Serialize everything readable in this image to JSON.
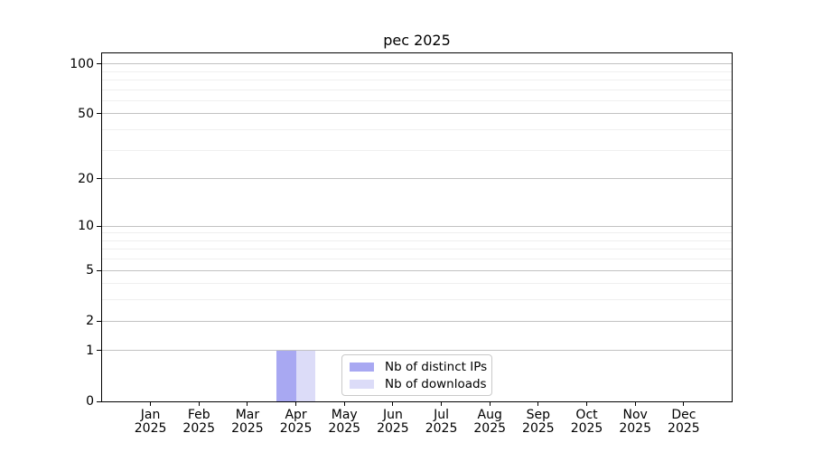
{
  "chart_data": {
    "type": "bar",
    "title": "pec 2025",
    "categories": [
      "Jan",
      "Feb",
      "Mar",
      "Apr",
      "May",
      "Jun",
      "Jul",
      "Aug",
      "Sep",
      "Oct",
      "Nov",
      "Dec"
    ],
    "category_year": "2025",
    "series": [
      {
        "name": "Nb of distinct IPs",
        "color": "#a8a8f2",
        "values": [
          0,
          0,
          0,
          1,
          0,
          0,
          0,
          0,
          0,
          0,
          0,
          0
        ]
      },
      {
        "name": "Nb of downloads",
        "color": "#dcdcf8",
        "values": [
          0,
          0,
          0,
          1,
          0,
          0,
          0,
          0,
          0,
          0,
          0,
          0
        ]
      }
    ],
    "y_scale": "log1p",
    "y_ticks": [
      0,
      1,
      2,
      5,
      10,
      20,
      50,
      100
    ],
    "y_minor_gridlines": [
      3,
      4,
      6,
      7,
      8,
      9,
      30,
      40,
      60,
      70,
      80,
      90
    ],
    "ylim": [
      0,
      115
    ],
    "xlabel": "",
    "ylabel": "",
    "grid": "horizontal",
    "legend_position": "lower center",
    "colors": {
      "major_grid": "#c2c2c2",
      "minor_grid": "#efefef",
      "spine": "#000000",
      "background": "#ffffff"
    }
  }
}
